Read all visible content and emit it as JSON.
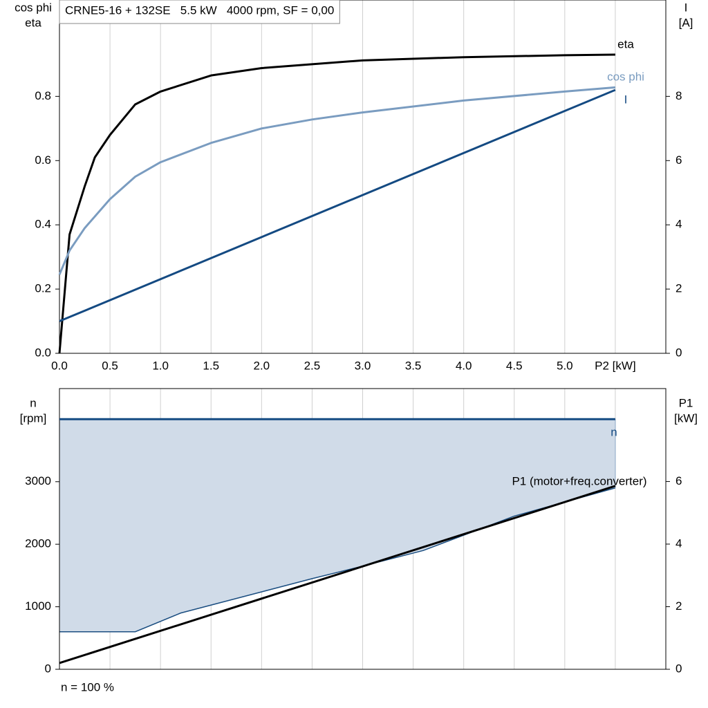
{
  "chart_data": [
    {
      "type": "line",
      "title": "CRNE5-16 + 132SE   5.5 kW   4000 rpm, SF = 0,00",
      "ylabel": [
        "cos phi",
        "eta"
      ],
      "y2label": [
        "I",
        "[A]"
      ],
      "xlim": [
        0,
        6
      ],
      "ylim": [
        0,
        1.1
      ],
      "y2lim": [
        0,
        11
      ],
      "xticks": [
        {
          "value": 0,
          "label": "0.0"
        },
        0.5,
        {
          "value": 1,
          "label": "1.0"
        },
        1.5,
        {
          "value": 2,
          "label": "2.0"
        },
        2.5,
        {
          "value": 3,
          "label": "3.0"
        },
        3.5,
        {
          "value": 4,
          "label": "4.0"
        },
        4.5,
        {
          "value": 5,
          "label": "5.0"
        },
        {
          "value": 5.5,
          "label": "P2 [kW]"
        }
      ],
      "yticks": [
        {
          "value": 0,
          "label": "0.0"
        },
        0.2,
        0.4,
        0.6,
        0.8
      ],
      "y2ticks": [
        0,
        2,
        4,
        6,
        8
      ],
      "grid": "x",
      "show_xtick_labels": true,
      "series": [
        {
          "name": "eta",
          "color": "#000000",
          "x": [
            0,
            0.1,
            0.25,
            0.35,
            0.5,
            0.75,
            1.0,
            1.5,
            2.0,
            2.5,
            3.0,
            4.0,
            5.0,
            5.5
          ],
          "values": [
            0,
            0.37,
            0.52,
            0.61,
            0.68,
            0.775,
            0.815,
            0.865,
            0.888,
            0.9,
            0.912,
            0.922,
            0.928,
            0.93
          ]
        },
        {
          "name": "cos phi",
          "color": "#7a9cc0",
          "x": [
            0,
            0.1,
            0.25,
            0.5,
            0.75,
            1.0,
            1.5,
            2.0,
            2.5,
            3.0,
            4.0,
            5.0,
            5.5
          ],
          "values": [
            0.245,
            0.32,
            0.39,
            0.48,
            0.55,
            0.595,
            0.655,
            0.7,
            0.728,
            0.75,
            0.787,
            0.815,
            0.828
          ]
        },
        {
          "name": "I",
          "color": "#144a82",
          "axis": "y2",
          "x": [
            0,
            5.5
          ],
          "values": [
            1.0,
            8.2
          ]
        }
      ]
    },
    {
      "type": "line",
      "note": "n = 100 %",
      "ylabel": [
        "n",
        "[rpm]"
      ],
      "y2label": [
        "P1",
        "[kW]"
      ],
      "xlim": [
        0,
        6
      ],
      "ylim": [
        0,
        4490
      ],
      "y2lim": [
        0,
        8.97
      ],
      "xticks": [
        0,
        0.5,
        1,
        1.5,
        2,
        2.5,
        3,
        3.5,
        4,
        4.5,
        5,
        5.5
      ],
      "yticks": [
        0,
        1000,
        2000,
        3000
      ],
      "y2ticks": [
        0,
        2,
        4,
        6
      ],
      "grid": "x",
      "show_xtick_labels": false,
      "area": {
        "color": "#d0dbe8",
        "edge": "#1a4d80",
        "x": [
          0,
          0.75,
          1.2,
          2.5,
          3.0,
          3.6,
          4.5,
          5.5
        ],
        "lower": [
          600,
          600,
          900,
          1450,
          1650,
          1900,
          2450,
          2900
        ]
      },
      "series": [
        {
          "name": "n",
          "color": "#144a82",
          "x": [
            0,
            5.5
          ],
          "values": [
            4000,
            4000
          ]
        },
        {
          "name": "P1 (motor+freq.converter)",
          "color": "#000000",
          "axis": "y2",
          "x": [
            0,
            5.5
          ],
          "values": [
            0.2,
            5.86
          ]
        }
      ]
    }
  ]
}
